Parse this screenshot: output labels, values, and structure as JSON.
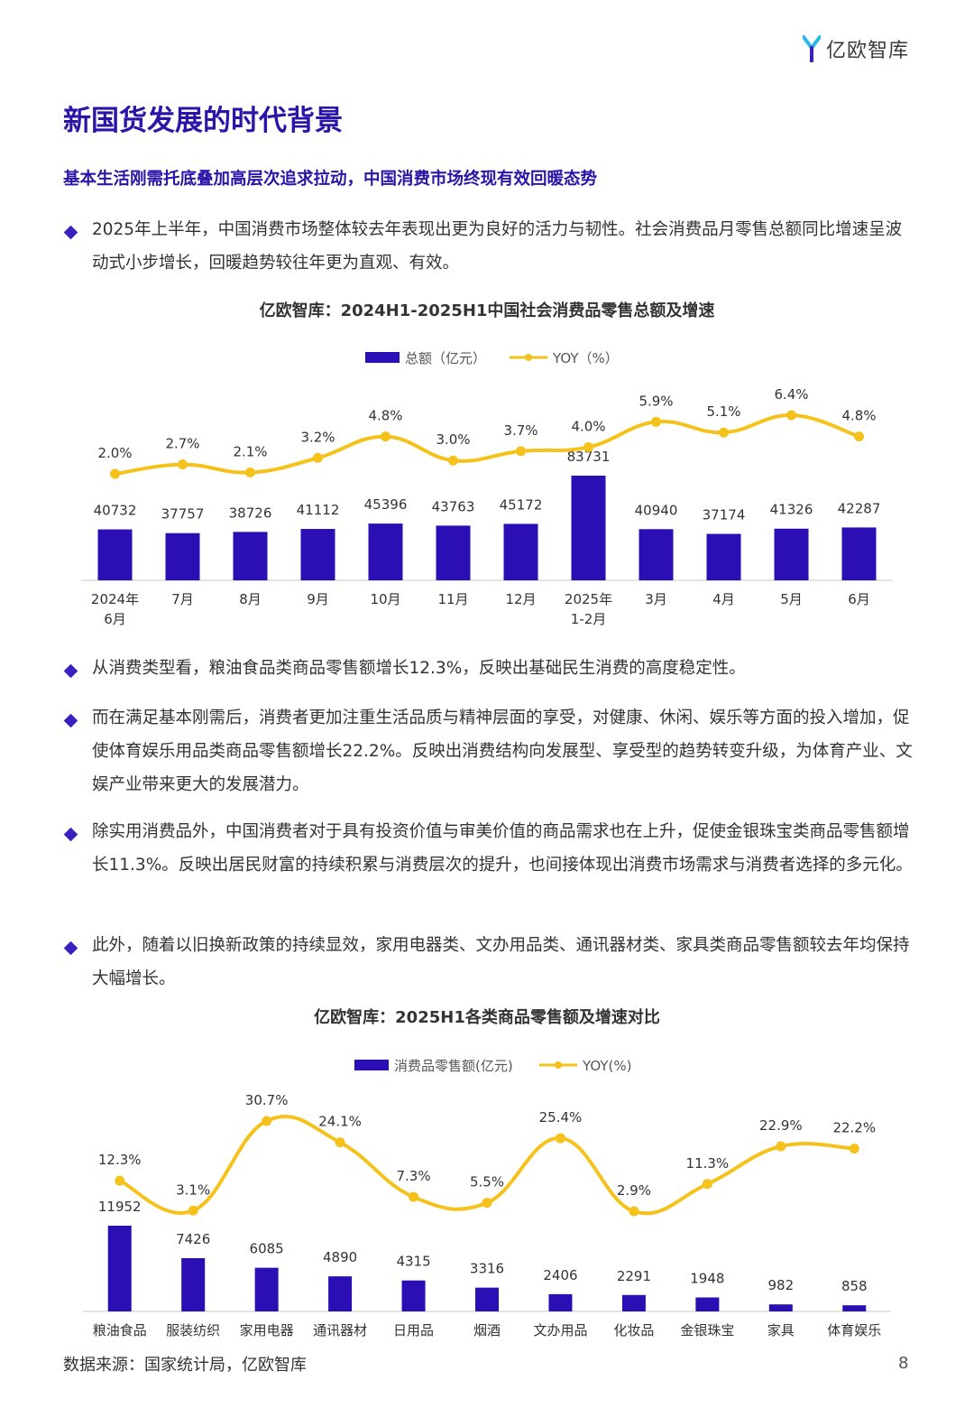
{
  "header": {
    "logo_text": "亿欧智库"
  },
  "title": "新国货发展的时代背景",
  "subtitle": "基本生活刚需托底叠加高层次追求拉动，中国消费市场终现有效回暖态势",
  "bullets": [
    "2025年上半年，中国消费市场整体较去年表现出更为良好的活力与韧性。社会消费品月零售总额同比增速呈波动式小步增长，回暖趋势较往年更为直观、有效。",
    "从消费类型看，粮油食品类商品零售额增长12.3%，反映出基础民生消费的高度稳定性。",
    "而在满足基本刚需后，消费者更加注重生活品质与精神层面的享受，对健康、休闲、娱乐等方面的投入增加，促使体育娱乐用品类商品零售额增长22.2%。反映出消费结构向发展型、享受型的趋势转变升级，为体育产业、文娱产业带来更大的发展潜力。",
    "除实用消费品外，中国消费者对于具有投资价值与审美价值的商品需求也在上升，促使金银珠宝类商品零售额增长11.3%。反映出居民财富的持续积累与消费层次的提升，也间接体现出消费市场需求与消费者选择的多元化。",
    "此外，随着以旧换新政策的持续显效，家用电器类、文办用品类、通讯器材类、家具类商品零售额较去年均保持大幅增长。"
  ],
  "colors": {
    "bar": "#2b0fb5",
    "line": "#f5c21b",
    "title": "#2b14a8"
  },
  "chart_data": [
    {
      "type": "bar",
      "title": "亿欧智库：2024H1-2025H1中国社会消费品零售总额及增速",
      "categories": [
        "2024年\n6月",
        "7月",
        "8月",
        "9月",
        "10月",
        "11月",
        "12月",
        "2025年\n1-2月",
        "3月",
        "4月",
        "5月",
        "6月"
      ],
      "series": [
        {
          "name": "总额（亿元）",
          "type": "bar",
          "values": [
            40732,
            37757,
            38726,
            41112,
            45396,
            43763,
            45172,
            83731,
            40940,
            37174,
            41326,
            42287
          ]
        },
        {
          "name": "YOY（%）",
          "type": "line",
          "values": [
            2.0,
            2.7,
            2.1,
            3.2,
            4.8,
            3.0,
            3.7,
            4.0,
            5.9,
            5.1,
            6.4,
            4.8
          ],
          "labels": [
            "2.0%",
            "2.7%",
            "2.1%",
            "3.2%",
            "4.8%",
            "3.0%",
            "3.7%",
            "4.0%",
            "5.9%",
            "5.1%",
            "6.4%",
            "4.8%"
          ]
        }
      ],
      "legend_position": "top",
      "grid": false
    },
    {
      "type": "bar",
      "title": "亿欧智库：2025H1各类商品零售额及增速对比",
      "categories": [
        "粮油食品",
        "服装纺织",
        "家用电器",
        "通讯器材",
        "日用品",
        "烟酒",
        "文办用品",
        "化妆品",
        "金银珠宝",
        "家具",
        "体育娱乐"
      ],
      "series": [
        {
          "name": "消费品零售额(亿元)",
          "type": "bar",
          "values": [
            11952,
            7426,
            6085,
            4890,
            4315,
            3316,
            2406,
            2291,
            1948,
            982,
            858
          ]
        },
        {
          "name": "YOY(%)",
          "type": "line",
          "values": [
            12.3,
            3.1,
            30.7,
            24.1,
            7.3,
            5.5,
            25.4,
            2.9,
            11.3,
            22.9,
            22.2
          ],
          "labels": [
            "12.3%",
            "3.1%",
            "30.7%",
            "24.1%",
            "7.3%",
            "5.5%",
            "25.4%",
            "2.9%",
            "11.3%",
            "22.9%",
            "22.2%"
          ]
        }
      ],
      "legend_position": "top",
      "grid": false
    }
  ],
  "footer": {
    "source": "数据来源：国家统计局，亿欧智库",
    "page_number": "8"
  }
}
